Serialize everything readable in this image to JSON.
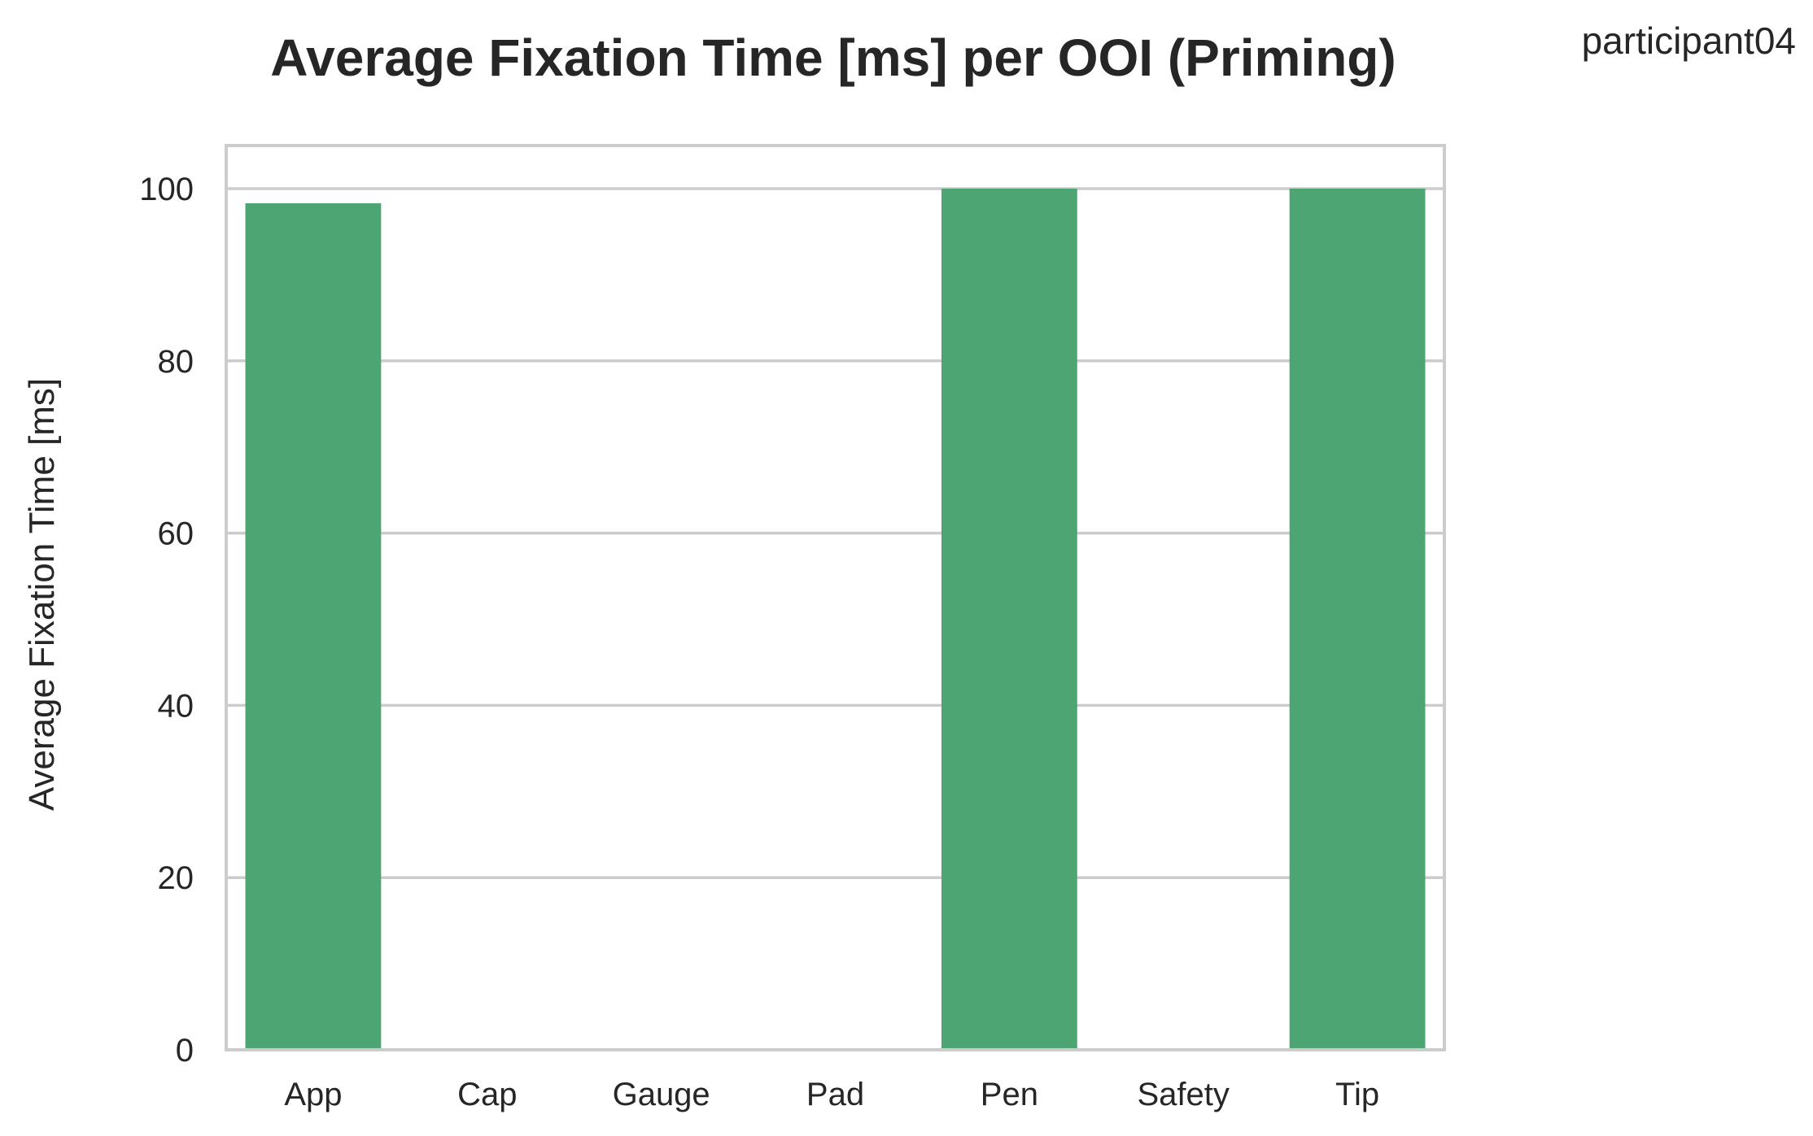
{
  "chart_data": {
    "type": "bar",
    "title": "Average Fixation Time [ms] per OOI (Priming)",
    "annotation": "participant04",
    "xlabel": "",
    "ylabel": "Average Fixation Time [ms]",
    "categories": [
      "App",
      "Cap",
      "Gauge",
      "Pad",
      "Pen",
      "Safety",
      "Tip"
    ],
    "values": [
      98.3,
      0,
      0,
      0,
      100,
      0,
      100
    ],
    "ylim": [
      0,
      105
    ],
    "yticks": [
      0,
      20,
      40,
      60,
      80,
      100
    ],
    "grid": "horizontal",
    "legend": "none",
    "bar_color": "#4ca572",
    "grid_color": "#cccccc",
    "frame_color": "#cccccc"
  }
}
